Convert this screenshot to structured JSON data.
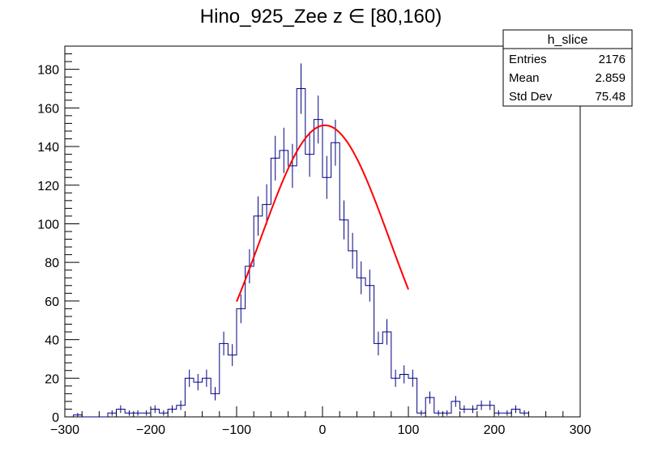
{
  "chart_data": {
    "type": "histogram",
    "title": "Hino_925_Zee z  ∈ [80,160)",
    "xlabel": "",
    "ylabel": "",
    "xlim": [
      -300,
      300
    ],
    "ylim": [
      0,
      192
    ],
    "x_ticks": [
      -300,
      -200,
      -100,
      0,
      100,
      200,
      300
    ],
    "x_tick_labels": [
      "−300",
      "−200",
      "−100",
      "0",
      "100",
      "200",
      "300"
    ],
    "y_ticks": [
      0,
      20,
      40,
      60,
      80,
      100,
      120,
      140,
      160,
      180
    ],
    "y_tick_labels": [
      "0",
      "20",
      "40",
      "60",
      "80",
      "100",
      "120",
      "140",
      "160",
      "180"
    ],
    "bin_edges_start": -300,
    "bin_width": 10,
    "series": [
      {
        "name": "h_slice",
        "color": "#000080",
        "values": [
          0,
          1,
          0,
          0,
          0,
          2,
          4,
          2,
          2,
          2,
          4,
          2,
          4,
          6,
          20,
          18,
          20,
          12,
          38,
          32,
          56,
          78,
          104,
          110,
          134,
          138,
          130,
          170,
          136,
          154,
          124,
          142,
          102,
          86,
          72,
          68,
          38,
          44,
          20,
          22,
          20,
          2,
          10,
          2,
          2,
          8,
          4,
          4,
          6,
          6,
          2,
          2,
          4,
          2
        ]
      }
    ],
    "fit": {
      "name": "gaussian fit",
      "color": "#ff0000",
      "amplitude": 151,
      "mean": 2.859,
      "sigma": 75.48,
      "x_range": [
        -100,
        100
      ]
    },
    "stats_box": {
      "title": "h_slice",
      "rows": [
        {
          "label": "Entries",
          "value": "2176"
        },
        {
          "label": "Mean",
          "value": "2.859"
        },
        {
          "label": "Std Dev",
          "value": "75.48"
        }
      ]
    },
    "grid": false
  }
}
